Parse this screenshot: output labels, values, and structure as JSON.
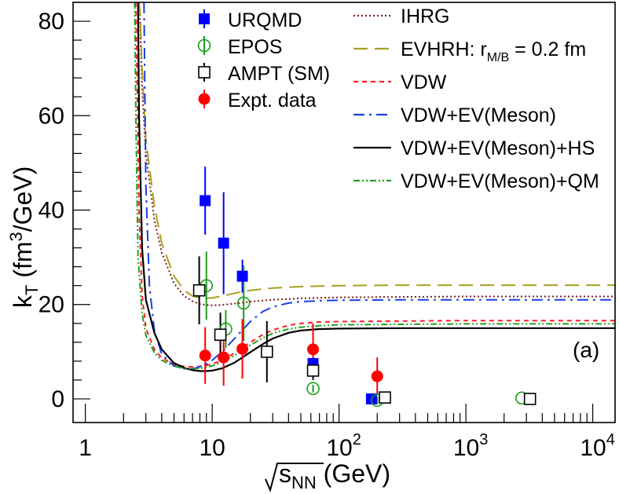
{
  "chart_data": {
    "type": "scatter",
    "x_scale": "log",
    "xlim": [
      0.8,
      15000
    ],
    "ylim": [
      -5,
      84
    ],
    "x_tick_labels": [
      {
        "x": 1,
        "base": "1",
        "exp": ""
      },
      {
        "x": 10,
        "base": "10",
        "exp": ""
      },
      {
        "x": 100,
        "base": "10",
        "exp": "2"
      },
      {
        "x": 1000,
        "base": "10",
        "exp": "3"
      },
      {
        "x": 10000,
        "base": "10",
        "exp": "4"
      }
    ],
    "y_ticks": [
      "0",
      "20",
      "40",
      "60",
      "80"
    ],
    "xlabel": {
      "root": "√",
      "s": "s",
      "sub": "NN",
      "unit": " (GeV)"
    },
    "ylabel": {
      "k": "k",
      "sub": "T",
      "open": " (fm",
      "sup": "3",
      "close": "/GeV)"
    },
    "panel_label": "(a)",
    "legend_markers": [
      {
        "name": "URQMD",
        "style": "filled-square",
        "color": "#0000ff"
      },
      {
        "name": "EPOS",
        "style": "open-circle",
        "color": "#1a9e1a"
      },
      {
        "name": "AMPT (SM)",
        "style": "open-square",
        "color": "#000000"
      },
      {
        "name": "Expt. data",
        "style": "filled-circle",
        "color": "#ff0000"
      }
    ],
    "legend_lines": [
      {
        "name": "IHRG",
        "color": "#7b1a1a",
        "dash": "2,3",
        "sub": "",
        "rest": ""
      },
      {
        "name": "EVHRH: r",
        "color": "#a8a020",
        "dash": "18,9",
        "sub": "M/B",
        "rest": " = 0.2 fm"
      },
      {
        "name": "VDW",
        "color": "#ff2020",
        "dash": "6,5",
        "sub": "",
        "rest": ""
      },
      {
        "name": "VDW+EV(Meson)",
        "color": "#1a3ee8",
        "dash": "14,6,3,6",
        "sub": "",
        "rest": ""
      },
      {
        "name": "VDW+EV(Meson)+HS",
        "color": "#000000",
        "dash": "",
        "sub": "",
        "rest": ""
      },
      {
        "name": "VDW+EV(Meson)+QM",
        "color": "#20a020",
        "dash": "8,3,2,3,2,3",
        "sub": "",
        "rest": ""
      }
    ],
    "points": [
      {
        "series": "URQMD",
        "x": 8.8,
        "y": 42.0,
        "err": 7.2
      },
      {
        "series": "URQMD",
        "x": 12.3,
        "y": 33.0,
        "err": 10.8
      },
      {
        "series": "URQMD",
        "x": 17.3,
        "y": 26.0,
        "err": 3.5
      },
      {
        "series": "URQMD",
        "x": 62.4,
        "y": 7.5,
        "err": 1.5
      },
      {
        "series": "URQMD",
        "x": 180,
        "y": 0.0,
        "err": 0.0
      },
      {
        "series": "EPOS",
        "x": 9.0,
        "y": 24.0,
        "err": 7.2
      },
      {
        "series": "EPOS",
        "x": 12.8,
        "y": 14.8,
        "err": 4.0
      },
      {
        "series": "EPOS",
        "x": 17.7,
        "y": 20.3,
        "err": 8.0
      },
      {
        "series": "EPOS",
        "x": 62.4,
        "y": 2.2,
        "err": 0.8
      },
      {
        "series": "EPOS",
        "x": 200,
        "y": -0.3,
        "err": 0.8
      },
      {
        "series": "EPOS",
        "x": 2760,
        "y": 0.2,
        "err": 0.0
      },
      {
        "series": "AMPT (SM)",
        "x": 7.9,
        "y": 23.0,
        "err": 7.2
      },
      {
        "series": "AMPT (SM)",
        "x": 11.6,
        "y": 13.6,
        "err": 4.7
      },
      {
        "series": "AMPT (SM)",
        "x": 27.0,
        "y": 10.0,
        "err": 6.5
      },
      {
        "series": "AMPT (SM)",
        "x": 62.4,
        "y": 6.0,
        "err": 2.0
      },
      {
        "series": "AMPT (SM)",
        "x": 230,
        "y": 0.3,
        "err": 0.0
      },
      {
        "series": "AMPT (SM)",
        "x": 3200,
        "y": 0.0,
        "err": 0.0
      },
      {
        "series": "Expt. data",
        "x": 8.8,
        "y": 9.2,
        "err": 6.0
      },
      {
        "series": "Expt. data",
        "x": 12.3,
        "y": 8.8,
        "err": 6.0
      },
      {
        "series": "Expt. data",
        "x": 17.3,
        "y": 10.6,
        "err": 6.3
      },
      {
        "series": "Expt. data",
        "x": 62.4,
        "y": 10.5,
        "err": 5.5
      },
      {
        "series": "Expt. data",
        "x": 200,
        "y": 4.8,
        "err": 4.0
      }
    ],
    "curves": [
      {
        "series": "IHRG",
        "x": [
          2.65,
          2.7,
          2.8,
          3.0,
          3.5,
          4.0,
          5.0,
          6.0,
          7.0,
          8.0,
          9.0,
          10.0,
          12.0,
          15.0,
          20.0,
          30.0,
          50.0,
          100.0,
          300.0,
          1000.0,
          3000.0,
          15000.0
        ],
        "y": [
          84.0,
          80.0,
          66.0,
          52.0,
          38.0,
          31.0,
          24.5,
          21.8,
          20.7,
          20.1,
          19.9,
          19.8,
          19.9,
          20.2,
          20.6,
          21.0,
          21.3,
          21.5,
          21.6,
          21.7,
          21.7,
          21.7
        ]
      },
      {
        "series": "EVHRH",
        "x": [
          2.65,
          2.7,
          2.8,
          3.0,
          3.5,
          4.0,
          5.0,
          6.0,
          7.0,
          8.0,
          9.0,
          10.0,
          12.0,
          15.0,
          20.0,
          30.0,
          50.0,
          100.0,
          300.0,
          1000.0,
          3000.0,
          15000.0
        ],
        "y": [
          84.0,
          82.0,
          70.0,
          55.0,
          41.0,
          33.0,
          26.0,
          23.0,
          21.8,
          21.4,
          21.3,
          21.4,
          21.8,
          22.4,
          23.0,
          23.5,
          23.8,
          24.0,
          24.1,
          24.1,
          24.1,
          24.1
        ]
      },
      {
        "series": "VDW",
        "x": [
          2.5,
          2.55,
          2.65,
          2.8,
          3.0,
          3.5,
          4.0,
          5.0,
          6.0,
          7.0,
          8.0,
          9.0,
          10.0,
          12.0,
          15.0,
          20.0,
          25.0,
          30.0,
          40.0,
          50.0,
          70.0,
          100.0,
          300.0,
          1000.0,
          15000.0
        ],
        "y": [
          84.0,
          70.0,
          40.0,
          22.0,
          15.0,
          10.5,
          8.7,
          7.3,
          6.9,
          6.8,
          6.9,
          7.1,
          7.4,
          8.2,
          9.7,
          12.0,
          13.6,
          14.6,
          15.6,
          16.0,
          16.3,
          16.4,
          16.5,
          16.6,
          16.6
        ]
      },
      {
        "series": "VDW+EV(Meson)",
        "x": [
          2.9,
          2.93,
          3.0,
          3.2,
          3.5,
          4.0,
          5.0,
          6.0,
          7.0,
          8.0,
          9.0,
          10.0,
          12.0,
          15.0,
          20.0,
          25.0,
          30.0,
          40.0,
          50.0,
          70.0,
          100.0,
          300.0,
          1000.0,
          15000.0
        ],
        "y": [
          84.0,
          72.0,
          45.0,
          24.0,
          14.5,
          9.5,
          7.0,
          6.4,
          6.4,
          6.8,
          7.4,
          8.2,
          10.0,
          12.8,
          16.4,
          18.5,
          19.5,
          20.3,
          20.6,
          20.8,
          20.9,
          21.0,
          21.0,
          21.0
        ]
      },
      {
        "series": "VDW+EV(Meson)+HS",
        "x": [
          2.6,
          2.65,
          2.8,
          3.0,
          3.5,
          4.0,
          5.0,
          6.0,
          7.0,
          8.0,
          9.0,
          10.0,
          12.0,
          15.0,
          20.0,
          25.0,
          30.0,
          40.0,
          50.0,
          70.0,
          100.0,
          300.0,
          1000.0,
          15000.0
        ],
        "y": [
          84.0,
          60.0,
          32.0,
          21.0,
          14.0,
          10.5,
          7.6,
          6.6,
          6.1,
          5.9,
          5.9,
          6.0,
          6.5,
          7.7,
          9.9,
          11.6,
          12.8,
          14.0,
          14.5,
          14.8,
          14.9,
          15.0,
          15.0,
          15.0
        ]
      },
      {
        "series": "VDW+EV(Meson)+QM",
        "x": [
          2.45,
          2.5,
          2.6,
          2.8,
          3.0,
          3.5,
          4.0,
          5.0,
          6.0,
          7.0,
          8.0,
          9.0,
          10.0,
          12.0,
          15.0,
          20.0,
          25.0,
          30.0,
          40.0,
          50.0,
          70.0,
          100.0,
          300.0,
          1000.0,
          15000.0
        ],
        "y": [
          84.0,
          60.0,
          30.0,
          18.0,
          13.5,
          9.8,
          8.2,
          6.9,
          6.5,
          6.4,
          6.5,
          6.7,
          7.0,
          7.8,
          9.2,
          11.4,
          12.9,
          13.9,
          14.8,
          15.2,
          15.5,
          15.7,
          15.8,
          15.9,
          15.9
        ]
      }
    ]
  }
}
